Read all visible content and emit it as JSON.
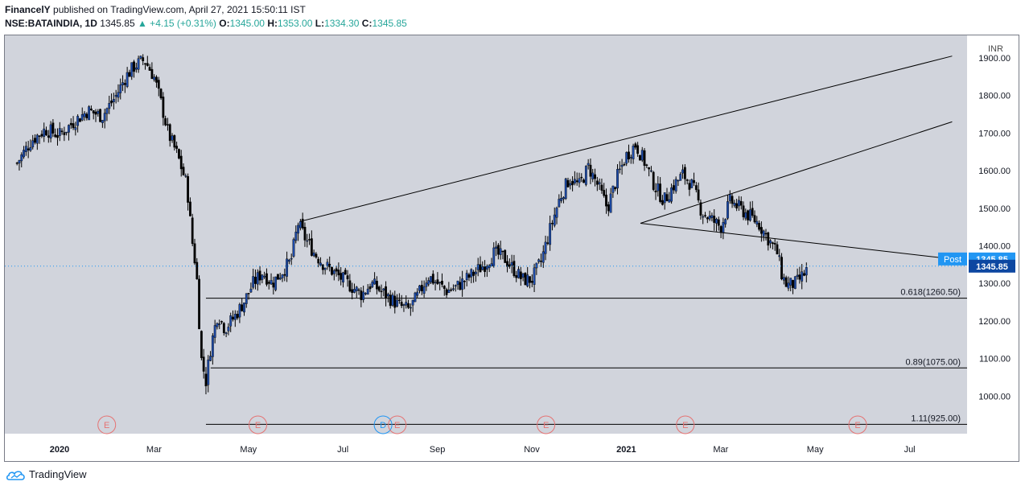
{
  "header": {
    "author": "FinancelY",
    "published_text": "published on TradingView.com, April 27, 2021 15:50:11 IST",
    "symbol": "NSE:BATAINDIA, 1D",
    "last": "1345.85",
    "change": "▲ +4.15 (+0.31%)",
    "o_label": "O:",
    "o_value": "1345.00",
    "h_label": "H:",
    "h_value": "1353.00",
    "l_label": "L:",
    "l_value": "1334.30",
    "c_label": "C:",
    "c_value": "1345.85"
  },
  "footer": {
    "brand": "TradingView"
  },
  "chart_data": {
    "type": "candlestick",
    "currency": "INR",
    "ylim": [
      900,
      1960
    ],
    "y_ticks": [
      "1000.00",
      "1100.00",
      "1200.00",
      "1300.00",
      "1400.00",
      "1500.00",
      "1600.00",
      "1700.00",
      "1800.00",
      "1900.00"
    ],
    "x_ticks": [
      {
        "label": "2020",
        "bold": true,
        "t": 0.0
      },
      {
        "label": "Mar",
        "bold": false,
        "t": 2.0
      },
      {
        "label": "May",
        "bold": false,
        "t": 4.0
      },
      {
        "label": "Jul",
        "bold": false,
        "t": 6.0
      },
      {
        "label": "Sep",
        "bold": false,
        "t": 8.0
      },
      {
        "label": "Nov",
        "bold": false,
        "t": 10.0
      },
      {
        "label": "2021",
        "bold": true,
        "t": 12.0
      },
      {
        "label": "Mar",
        "bold": false,
        "t": 14.0
      },
      {
        "label": "May",
        "bold": false,
        "t": 16.0
      },
      {
        "label": "Jul",
        "bold": false,
        "t": 18.0
      }
    ],
    "price_path": [
      [
        -0.9,
        1620
      ],
      [
        -0.6,
        1680
      ],
      [
        -0.3,
        1710
      ],
      [
        0.0,
        1695
      ],
      [
        0.3,
        1730
      ],
      [
        0.6,
        1760
      ],
      [
        0.9,
        1745
      ],
      [
        1.2,
        1800
      ],
      [
        1.4,
        1850
      ],
      [
        1.6,
        1880
      ],
      [
        1.8,
        1895
      ],
      [
        2.0,
        1850
      ],
      [
        2.15,
        1780
      ],
      [
        2.3,
        1700
      ],
      [
        2.5,
        1640
      ],
      [
        2.7,
        1560
      ],
      [
        2.8,
        1420
      ],
      [
        2.9,
        1330
      ],
      [
        3.0,
        1100
      ],
      [
        3.1,
        1040
      ],
      [
        3.2,
        1130
      ],
      [
        3.35,
        1220
      ],
      [
        3.5,
        1180
      ],
      [
        3.7,
        1210
      ],
      [
        3.9,
        1250
      ],
      [
        4.1,
        1300
      ],
      [
        4.3,
        1330
      ],
      [
        4.5,
        1300
      ],
      [
        4.7,
        1330
      ],
      [
        4.9,
        1360
      ],
      [
        5.05,
        1460
      ],
      [
        5.2,
        1420
      ],
      [
        5.4,
        1380
      ],
      [
        5.6,
        1350
      ],
      [
        5.8,
        1330
      ],
      [
        6.0,
        1310
      ],
      [
        6.2,
        1290
      ],
      [
        6.4,
        1270
      ],
      [
        6.6,
        1300
      ],
      [
        6.8,
        1280
      ],
      [
        7.0,
        1260
      ],
      [
        7.2,
        1240
      ],
      [
        7.4,
        1230
      ],
      [
        7.6,
        1270
      ],
      [
        7.8,
        1320
      ],
      [
        8.0,
        1300
      ],
      [
        8.2,
        1280
      ],
      [
        8.4,
        1290
      ],
      [
        8.6,
        1310
      ],
      [
        8.8,
        1330
      ],
      [
        9.0,
        1350
      ],
      [
        9.2,
        1380
      ],
      [
        9.4,
        1370
      ],
      [
        9.6,
        1340
      ],
      [
        9.8,
        1310
      ],
      [
        10.0,
        1310
      ],
      [
        10.2,
        1360
      ],
      [
        10.4,
        1450
      ],
      [
        10.6,
        1530
      ],
      [
        10.8,
        1580
      ],
      [
        11.0,
        1560
      ],
      [
        11.2,
        1610
      ],
      [
        11.4,
        1560
      ],
      [
        11.6,
        1500
      ],
      [
        11.8,
        1580
      ],
      [
        12.0,
        1640
      ],
      [
        12.2,
        1670
      ],
      [
        12.4,
        1620
      ],
      [
        12.6,
        1560
      ],
      [
        12.8,
        1520
      ],
      [
        13.0,
        1560
      ],
      [
        13.2,
        1590
      ],
      [
        13.4,
        1560
      ],
      [
        13.6,
        1490
      ],
      [
        13.8,
        1470
      ],
      [
        14.0,
        1450
      ],
      [
        14.2,
        1520
      ],
      [
        14.4,
        1500
      ],
      [
        14.6,
        1480
      ],
      [
        14.8,
        1460
      ],
      [
        15.0,
        1420
      ],
      [
        15.2,
        1380
      ],
      [
        15.3,
        1320
      ],
      [
        15.4,
        1295
      ],
      [
        15.6,
        1300
      ],
      [
        15.8,
        1330
      ],
      [
        15.85,
        1345.85
      ]
    ],
    "last_price": "1345.85",
    "lines": [
      {
        "name": "upper-resistance-line",
        "from": [
          5.1,
          1465
        ],
        "to": [
          18.9,
          1905
        ]
      },
      {
        "name": "inner-channel-line",
        "from": [
          12.3,
          1460
        ],
        "to": [
          18.9,
          1730
        ]
      },
      {
        "name": "descending-trendline",
        "from": [
          12.3,
          1460
        ],
        "to": [
          18.9,
          1365
        ]
      }
    ],
    "fib_levels": [
      {
        "label": "0.618(1260.50)",
        "price": 1260.5,
        "t_from": 3.1
      },
      {
        "label": "0.89(1075.00)",
        "price": 1075.0,
        "t_from": 3.2
      },
      {
        "label": "1.11(925.00)",
        "price": 925.0,
        "t_from": 3.1
      }
    ],
    "events": [
      {
        "letter": "E",
        "t": 1.0,
        "kind": "earnings"
      },
      {
        "letter": "E",
        "t": 4.2,
        "kind": "earnings"
      },
      {
        "letter": "D",
        "t": 6.85,
        "kind": "dividend"
      },
      {
        "letter": "E",
        "t": 7.15,
        "kind": "earnings"
      },
      {
        "letter": "E",
        "t": 10.3,
        "kind": "earnings"
      },
      {
        "letter": "E",
        "t": 13.25,
        "kind": "earnings"
      },
      {
        "letter": "E",
        "t": 16.9,
        "kind": "earnings"
      }
    ],
    "post_label": "Post",
    "post_price": "1345.85",
    "colors": {
      "background": "#d1d4dc",
      "up": "#1c4aa8",
      "down": "#000000",
      "post": "#2196f3",
      "price_tag": "#0d47a1",
      "earn": "#e57373",
      "div": "#2196f3"
    }
  }
}
